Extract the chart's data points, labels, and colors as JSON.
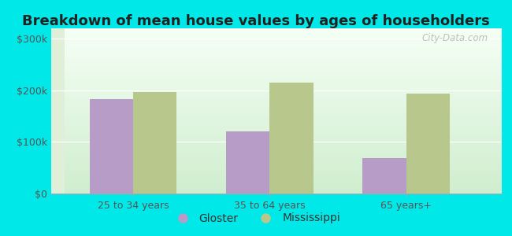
{
  "title": "Breakdown of mean house values by ages of householders",
  "categories": [
    "25 to 34 years",
    "35 to 64 years",
    "65 years+"
  ],
  "gloster_bar": [
    183000,
    120000,
    68000
  ],
  "mississippi_bar": [
    197000,
    215000,
    193000
  ],
  "gloster_color": "#b89cc8",
  "mississippi_color": "#b8c88c",
  "background_outer": "#00e8e8",
  "yticks": [
    0,
    100000,
    200000,
    300000
  ],
  "ytick_labels": [
    "$0",
    "$100k",
    "$200k",
    "$300k"
  ],
  "ylim": [
    0,
    320000
  ],
  "bar_width": 0.32,
  "legend_labels": [
    "Gloster",
    "Mississippi"
  ],
  "watermark": "City-Data.com",
  "title_fontsize": 13,
  "tick_fontsize": 9,
  "legend_fontsize": 10
}
